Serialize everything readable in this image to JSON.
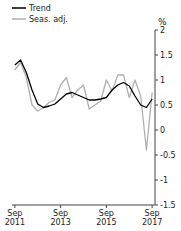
{
  "chart_data": {
    "type": "line",
    "y_label": "%",
    "categories": [
      "Sep\n2011",
      null,
      null,
      null,
      null,
      null,
      null,
      null,
      "Sep\n2013",
      null,
      null,
      null,
      null,
      null,
      null,
      null,
      "Sep\n2015",
      null,
      null,
      null,
      null,
      null,
      null,
      null,
      "Sep\n2017"
    ],
    "series": [
      {
        "name": "Trend",
        "color": "#000000",
        "values": [
          1.3,
          1.4,
          1.15,
          0.8,
          0.52,
          0.45,
          0.48,
          0.52,
          0.62,
          0.72,
          0.75,
          0.7,
          0.65,
          0.6,
          0.6,
          0.62,
          0.65,
          0.8,
          0.9,
          0.95,
          0.88,
          0.68,
          0.5,
          0.45,
          0.62
        ]
      },
      {
        "name": "Seas. adj.",
        "color": "#b0b0b0",
        "values": [
          1.2,
          1.35,
          1.05,
          0.5,
          0.38,
          0.45,
          0.55,
          0.6,
          0.9,
          1.05,
          0.65,
          0.8,
          0.9,
          0.42,
          0.5,
          0.58,
          1.0,
          0.78,
          1.1,
          1.1,
          0.65,
          1.0,
          0.68,
          -0.4,
          0.75
        ]
      }
    ],
    "ylim": [
      -1.5,
      2.0
    ],
    "yticks": [
      -1.5,
      -1,
      -0.5,
      0,
      0.5,
      1,
      1.5,
      2
    ],
    "grid": false,
    "legend": "top-left"
  }
}
